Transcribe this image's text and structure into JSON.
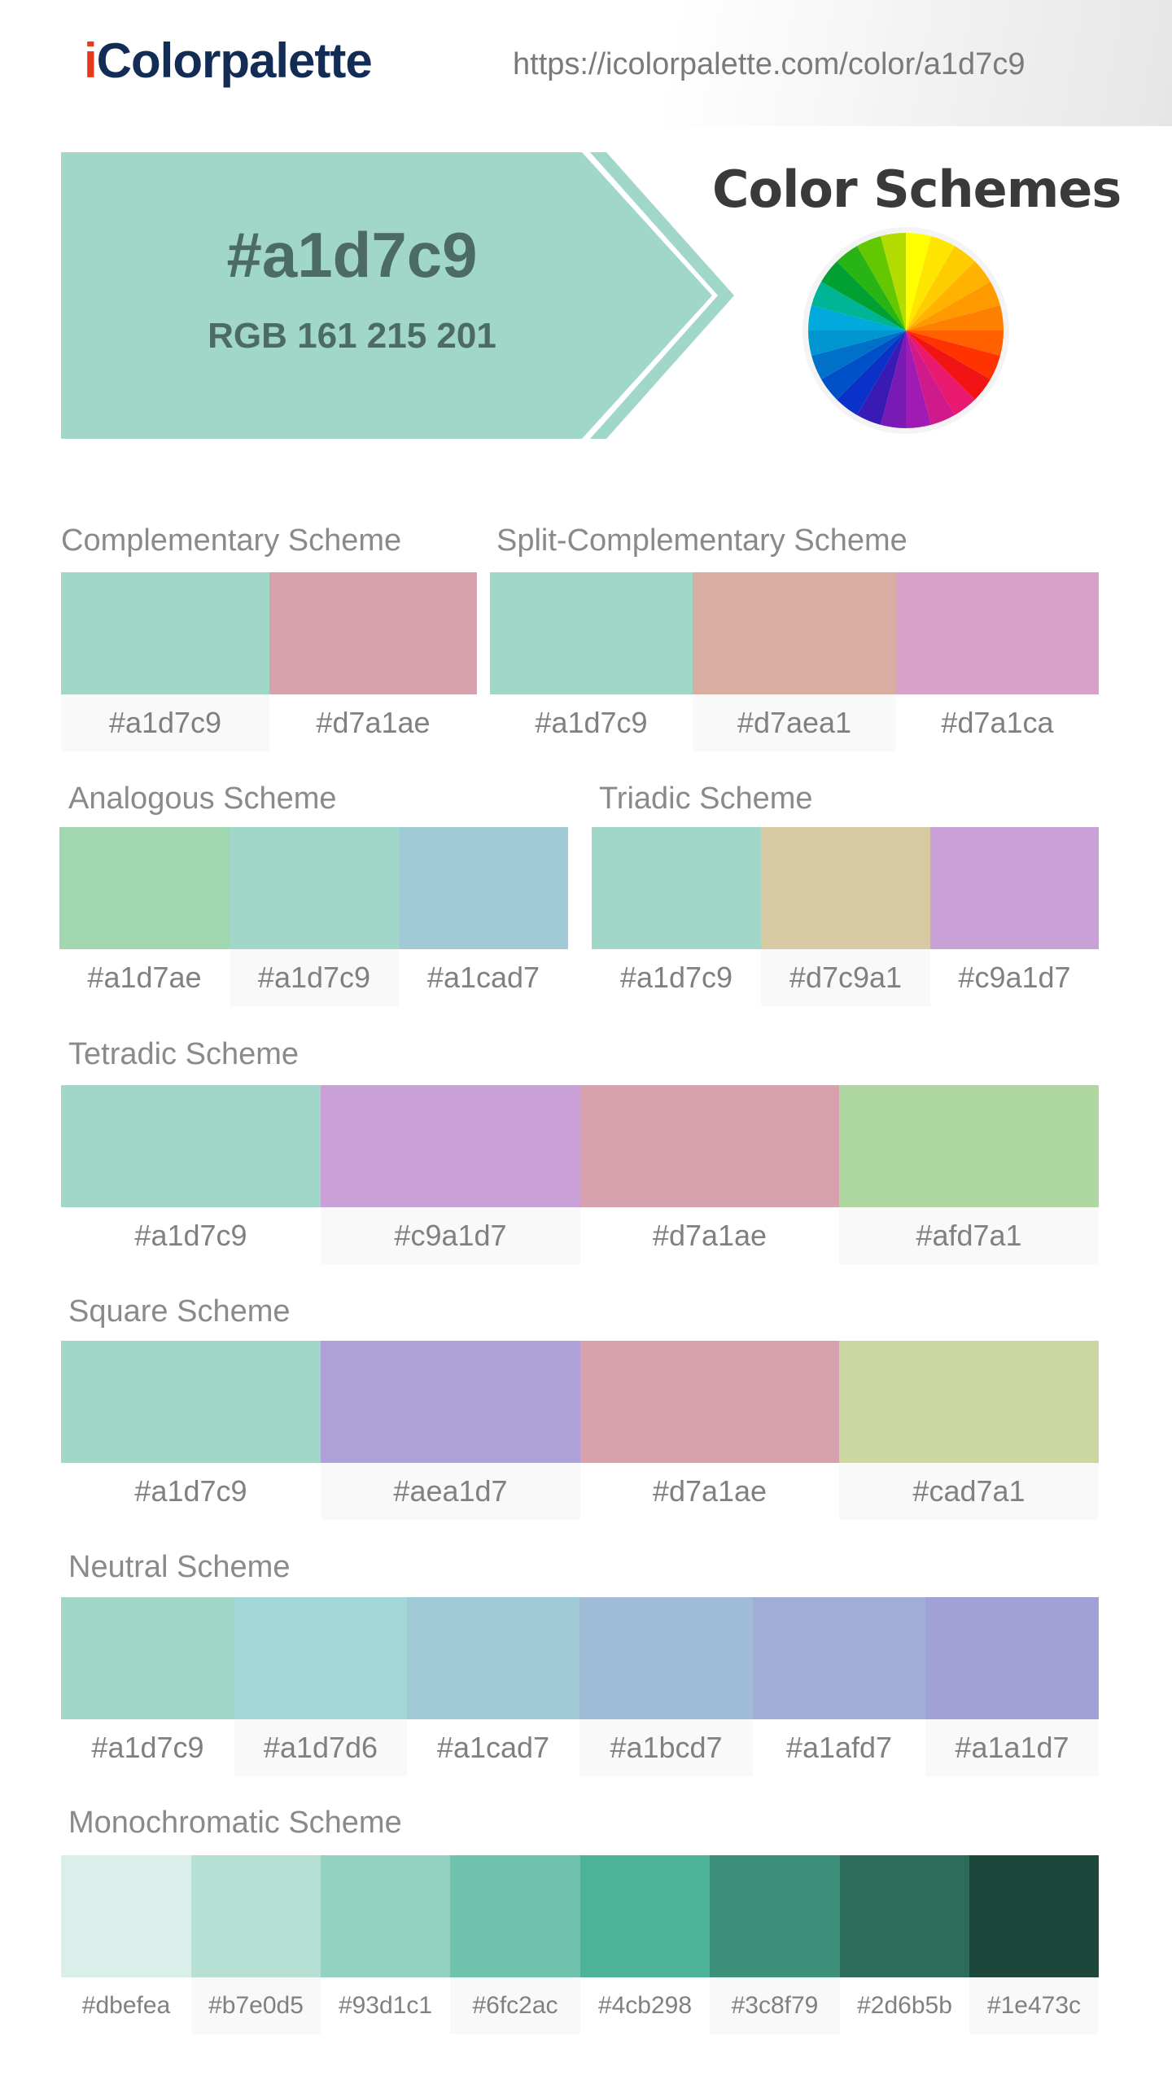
{
  "header": {
    "logo_i": "i",
    "logo_rest": "Colorpalette",
    "url": "https://icolorpalette.com/color/a1d7c9"
  },
  "hero": {
    "hex": "#a1d7c9",
    "rgb": "RGB 161 215 201",
    "color": "#a1d7c9"
  },
  "color_schemes_title": "Color Schemes",
  "wheel_colors": [
    "#ffff00",
    "#ffe600",
    "#ffcc00",
    "#ffb300",
    "#ff9900",
    "#ff8000",
    "#ff6000",
    "#ff3300",
    "#f01414",
    "#e8196e",
    "#d01a8c",
    "#a01ab4",
    "#7a1ab4",
    "#3a1ab4",
    "#0a32c8",
    "#0050c8",
    "#0070c8",
    "#0096d2",
    "#00aadc",
    "#00b496",
    "#00a032",
    "#28b414",
    "#64c800",
    "#b4dc00"
  ],
  "schemes": {
    "complementary": {
      "title": "Complementary Scheme",
      "colors": [
        "#a1d7c9",
        "#d7a1ae"
      ],
      "labels": [
        "#a1d7c9",
        "#d7a1ae"
      ]
    },
    "split_complementary": {
      "title": "Split-Complementary Scheme",
      "colors": [
        "#a1d7c9",
        "#d7aea1",
        "#d7a1ca"
      ],
      "labels": [
        "#a1d7c9",
        "#d7aea1",
        "#d7a1ca"
      ]
    },
    "analogous": {
      "title": "Analogous Scheme",
      "colors": [
        "#a1d7ae",
        "#a1d7c9",
        "#a1cad7"
      ],
      "labels": [
        "#a1d7ae",
        "#a1d7c9",
        "#a1cad7"
      ]
    },
    "triadic": {
      "title": "Triadic Scheme",
      "colors": [
        "#a1d7c9",
        "#d7c9a1",
        "#c9a1d7"
      ],
      "labels": [
        "#a1d7c9",
        "#d7c9a1",
        "#c9a1d7"
      ]
    },
    "tetradic": {
      "title": "Tetradic Scheme",
      "colors": [
        "#a1d7c9",
        "#c9a1d7",
        "#d7a1ae",
        "#afd7a1"
      ],
      "labels": [
        "#a1d7c9",
        "#c9a1d7",
        "#d7a1ae",
        "#afd7a1"
      ]
    },
    "square": {
      "title": "Square Scheme",
      "colors": [
        "#a1d7c9",
        "#aea1d7",
        "#d7a1ae",
        "#cad7a1"
      ],
      "labels": [
        "#a1d7c9",
        "#aea1d7",
        "#d7a1ae",
        "#cad7a1"
      ]
    },
    "neutral": {
      "title": "Neutral Scheme",
      "colors": [
        "#a1d7c9",
        "#a1d7d6",
        "#a1cad7",
        "#a1bcd7",
        "#a1afd7",
        "#a1a1d7"
      ],
      "labels": [
        "#a1d7c9",
        "#a1d7d6",
        "#a1cad7",
        "#a1bcd7",
        "#a1afd7",
        "#a1a1d7"
      ]
    },
    "monochromatic": {
      "title": "Monochromatic Scheme",
      "colors": [
        "#dbefea",
        "#b7e0d5",
        "#93d1c1",
        "#6fc2ac",
        "#4cb298",
        "#3c8f79",
        "#2d6b5b",
        "#1e473c"
      ],
      "labels": [
        "#dbefea",
        "#b7e0d5",
        "#93d1c1",
        "#6fc2ac",
        "#4cb298",
        "#3c8f79",
        "#2d6b5b",
        "#1e473c"
      ]
    }
  }
}
